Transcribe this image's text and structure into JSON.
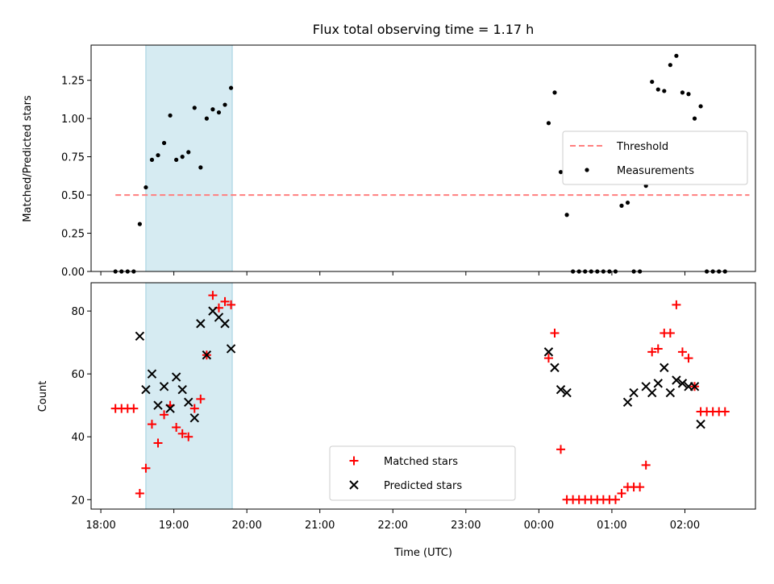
{
  "chart_data": [
    {
      "type": "scatter",
      "title": "Flux total observing time = 1.17 h",
      "xlabel": "",
      "ylabel": "Matched/Predicted stars",
      "xlim": [
        "17:52",
        "02:58"
      ],
      "ylim": [
        0,
        1.48
      ],
      "xticks": [
        "18:00",
        "19:00",
        "20:00",
        "21:00",
        "22:00",
        "23:00",
        "00:00",
        "01:00",
        "02:00"
      ],
      "yticks": [
        "0.00",
        "0.25",
        "0.50",
        "0.75",
        "1.00",
        "1.25"
      ],
      "highlight_band": {
        "from": "18:37",
        "to": "19:48",
        "color": "#add8e6"
      },
      "legend": {
        "placement": "center-right",
        "entries": [
          "Threshold",
          "Measurements"
        ]
      },
      "series": [
        {
          "name": "Threshold",
          "kind": "dashed-line",
          "color": "#ff7f7f",
          "x": [
            "18:12",
            "02:53"
          ],
          "y": [
            0.5,
            0.5
          ]
        },
        {
          "name": "Measurements",
          "kind": "dot",
          "color": "#000000",
          "x": [
            "18:12",
            "18:17",
            "18:22",
            "18:27",
            "18:32",
            "18:37",
            "18:42",
            "18:47",
            "18:52",
            "18:57",
            "19:02",
            "19:07",
            "19:12",
            "19:17",
            "19:22",
            "19:27",
            "19:32",
            "19:37",
            "19:42",
            "19:47",
            "00:08",
            "00:13",
            "00:18",
            "00:23",
            "00:28",
            "00:33",
            "00:38",
            "00:43",
            "00:48",
            "00:53",
            "00:58",
            "01:03",
            "01:08",
            "01:13",
            "01:18",
            "01:23",
            "01:28",
            "01:33",
            "01:38",
            "01:43",
            "01:48",
            "01:53",
            "01:58",
            "02:03",
            "02:08",
            "02:13",
            "02:18",
            "02:23",
            "02:28",
            "02:33"
          ],
          "y": [
            0.0,
            0.0,
            0.0,
            0.0,
            0.31,
            0.55,
            0.73,
            0.76,
            0.84,
            1.02,
            0.73,
            0.75,
            0.78,
            1.07,
            0.68,
            1.0,
            1.06,
            1.04,
            1.09,
            1.2,
            0.97,
            1.17,
            0.65,
            0.37,
            0.0,
            0.0,
            0.0,
            0.0,
            0.0,
            0.0,
            0.0,
            0.0,
            0.43,
            0.45,
            0.0,
            0.0,
            0.56,
            1.24,
            1.19,
            1.18,
            1.35,
            1.41,
            1.17,
            1.16,
            1.0,
            1.08,
            0.0,
            0.0,
            0.0,
            0.0
          ]
        }
      ]
    },
    {
      "type": "scatter",
      "title": "",
      "xlabel": "Time (UTC)",
      "ylabel": "Count",
      "xlim": [
        "17:52",
        "02:58"
      ],
      "ylim": [
        17,
        89
      ],
      "xticks": [
        "18:00",
        "19:00",
        "20:00",
        "21:00",
        "22:00",
        "23:00",
        "00:00",
        "01:00",
        "02:00"
      ],
      "yticks": [
        "20",
        "40",
        "60",
        "80"
      ],
      "highlight_band": {
        "from": "18:37",
        "to": "19:48",
        "color": "#add8e6"
      },
      "legend": {
        "placement": "bottom-center",
        "entries": [
          "Matched stars",
          "Predicted stars"
        ]
      },
      "series": [
        {
          "name": "Matched stars",
          "kind": "plus",
          "color": "#ff0000",
          "x": [
            "18:12",
            "18:17",
            "18:22",
            "18:27",
            "18:32",
            "18:37",
            "18:42",
            "18:47",
            "18:52",
            "18:57",
            "19:02",
            "19:07",
            "19:12",
            "19:17",
            "19:22",
            "19:27",
            "19:32",
            "19:37",
            "19:42",
            "19:47",
            "00:08",
            "00:13",
            "00:18",
            "00:23",
            "00:28",
            "00:33",
            "00:38",
            "00:43",
            "00:48",
            "00:53",
            "00:58",
            "01:03",
            "01:08",
            "01:13",
            "01:18",
            "01:23",
            "01:28",
            "01:33",
            "01:38",
            "01:43",
            "01:48",
            "01:53",
            "01:58",
            "02:03",
            "02:08",
            "02:13",
            "02:18",
            "02:23",
            "02:28",
            "02:33"
          ],
          "y": [
            49,
            49,
            49,
            49,
            22,
            30,
            44,
            38,
            47,
            50,
            43,
            41,
            40,
            49,
            52,
            66,
            85,
            81,
            83,
            82,
            65,
            73,
            36,
            20,
            20,
            20,
            20,
            20,
            20,
            20,
            20,
            20,
            22,
            24,
            24,
            24,
            31,
            67,
            68,
            73,
            73,
            82,
            67,
            65,
            56,
            48,
            48,
            48,
            48,
            48
          ]
        },
        {
          "name": "Predicted stars",
          "kind": "cross",
          "color": "#000000",
          "x": [
            "18:32",
            "18:37",
            "18:42",
            "18:47",
            "18:52",
            "18:57",
            "19:02",
            "19:07",
            "19:12",
            "19:17",
            "19:22",
            "19:27",
            "19:32",
            "19:37",
            "19:42",
            "19:47",
            "00:08",
            "00:13",
            "00:18",
            "00:23",
            "01:13",
            "01:18",
            "01:28",
            "01:33",
            "01:38",
            "01:43",
            "01:48",
            "01:53",
            "01:58",
            "02:03",
            "02:08",
            "02:13"
          ],
          "y": [
            72,
            55,
            60,
            50,
            56,
            49,
            59,
            55,
            51,
            46,
            76,
            66,
            80,
            78,
            76,
            68,
            67,
            62,
            55,
            54,
            51,
            54,
            56,
            54,
            57,
            62,
            54,
            58,
            57,
            56,
            56,
            44
          ]
        }
      ]
    }
  ]
}
